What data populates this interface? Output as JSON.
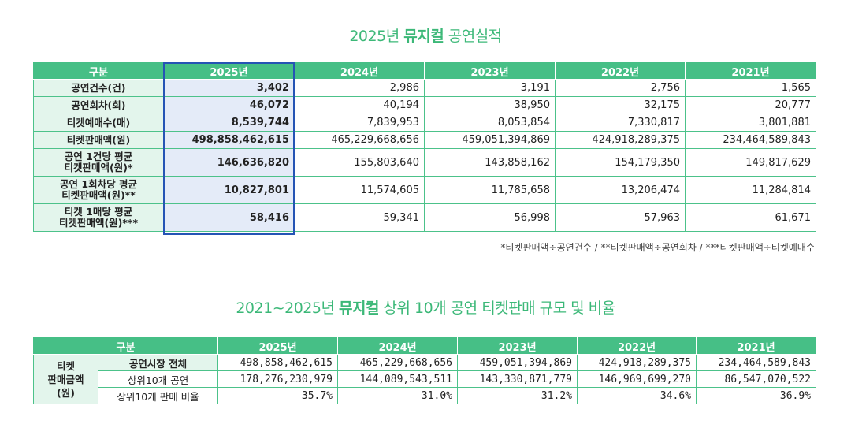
{
  "performance": {
    "title_year": "2025년",
    "title_bold": "뮤지컬",
    "title_rest": "공연실적",
    "headers": [
      "구분",
      "2025년",
      "2024년",
      "2023년",
      "2022년",
      "2021년"
    ],
    "rows": [
      {
        "label": "공연건수(건)",
        "values": [
          "3,402",
          "2,986",
          "3,191",
          "2,756",
          "1,565"
        ]
      },
      {
        "label": "공연회차(회)",
        "values": [
          "46,072",
          "40,194",
          "38,950",
          "32,175",
          "20,777"
        ]
      },
      {
        "label": "티켓예매수(매)",
        "values": [
          "8,539,744",
          "7,839,953",
          "8,053,854",
          "7,330,817",
          "3,801,881"
        ]
      },
      {
        "label": "티켓판매액(원)",
        "values": [
          "498,858,462,615",
          "465,229,668,656",
          "459,051,394,869",
          "424,918,289,375",
          "234,464,589,843"
        ]
      },
      {
        "label_line1": "공연 1건당 평균",
        "label_line2": "티켓판매액(원)*",
        "values": [
          "146,636,820",
          "155,803,640",
          "143,858,162",
          "154,179,350",
          "149,817,629"
        ]
      },
      {
        "label_line1": "공연 1회차당 평균",
        "label_line2": "티켓판매액(원)**",
        "values": [
          "10,827,801",
          "11,574,605",
          "11,785,658",
          "13,206,474",
          "11,284,814"
        ]
      },
      {
        "label_line1": "티켓 1매당 평균",
        "label_line2": "티켓판매액(원)***",
        "values": [
          "58,416",
          "59,341",
          "56,998",
          "57,963",
          "61,671"
        ]
      }
    ],
    "footnote": "*티켓판매액÷공연건수 / **티켓판매액÷공연회차 / ***티켓판매액÷티켓예매수"
  },
  "market": {
    "title_years": "2021~2025년",
    "title_bold": "뮤지컬",
    "title_rest": "상위 10개 공연 티켓판매 규모 및 비율",
    "headers": [
      "구분",
      "2025년",
      "2024년",
      "2023년",
      "2022년",
      "2021년"
    ],
    "row_group_line1": "티켓",
    "row_group_line2": "판매금액",
    "row_group_line3": "(원)",
    "rows": [
      {
        "label": "공연시장 전체",
        "values": [
          "498,858,462,615",
          "465,229,668,656",
          "459,051,394,869",
          "424,918,289,375",
          "234,464,589,843"
        ]
      },
      {
        "label": "상위10개 공연",
        "values": [
          "178,276,230,979",
          "144,089,543,511",
          "143,330,871,779",
          "146,969,699,270",
          "86,547,070,522"
        ]
      },
      {
        "label": "상위10개 판매 비율",
        "values": [
          "35.7%",
          "31.0%",
          "31.2%",
          "34.6%",
          "36.9%"
        ]
      }
    ]
  }
}
